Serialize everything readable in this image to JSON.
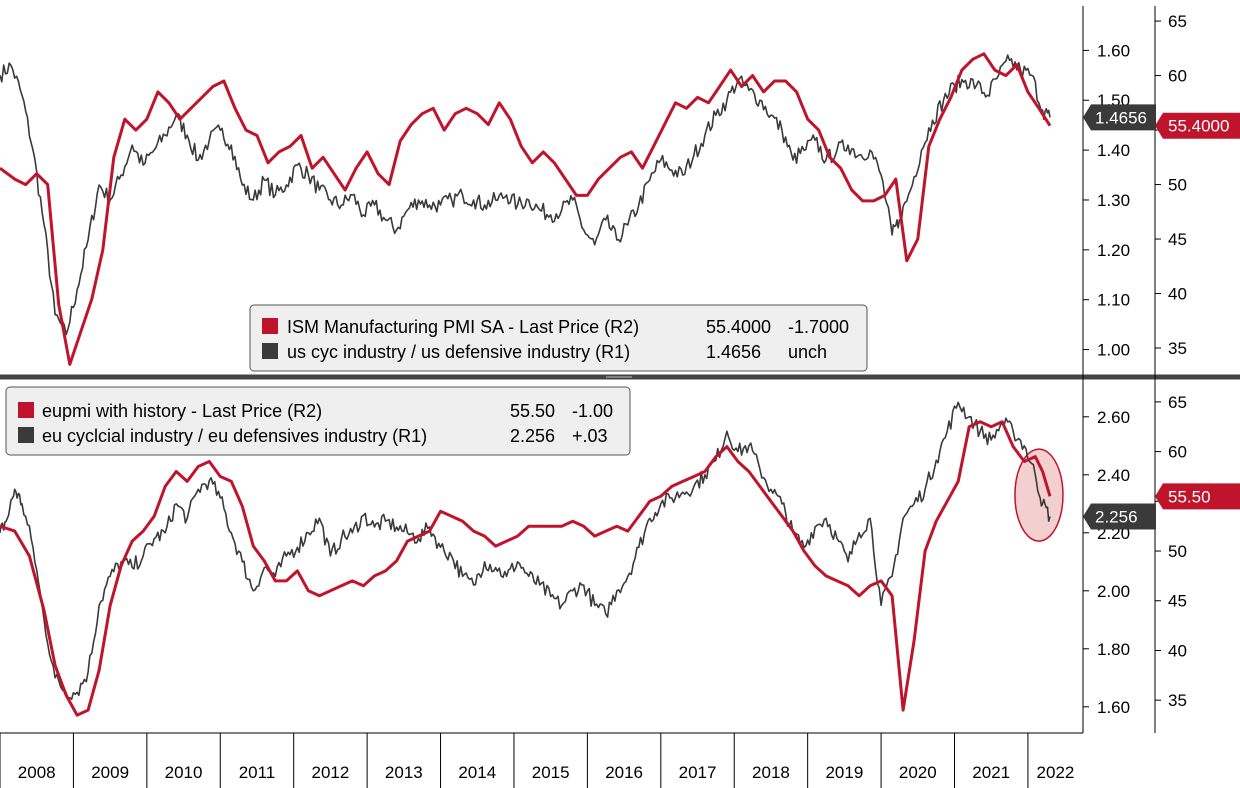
{
  "colors": {
    "red": "#c0142c",
    "black": "#3a3a3a",
    "axis": "#000000",
    "legend_bg": "#efefef",
    "highlight_fill": "#f2c7c7"
  },
  "x_axis": {
    "years": [
      "2008",
      "2009",
      "2010",
      "2011",
      "2012",
      "2013",
      "2014",
      "2015",
      "2016",
      "2017",
      "2018",
      "2019",
      "2020",
      "2021",
      "2022"
    ]
  },
  "chart_data": [
    {
      "type": "line",
      "panel": "top",
      "left_axis_ticks": [
        "1.00",
        "1.10",
        "1.20",
        "1.30",
        "1.40",
        "1.50",
        "1.60"
      ],
      "right_axis_ticks": [
        "35",
        "40",
        "45",
        "50",
        "55",
        "60",
        "65"
      ],
      "ylim_left": [
        0.955,
        1.685
      ],
      "ylim_right": [
        32.8,
        66.2
      ],
      "series": [
        {
          "name": "ISM Manufacturing PMI SA - Last Price (R2)",
          "axis": "right",
          "color": "#c0142c",
          "legend_value": "55.4000",
          "legend_change": "-1.7000",
          "last_label": "55.4000",
          "x": [
            2008.0,
            2008.2,
            2008.35,
            2008.5,
            2008.65,
            2008.8,
            2008.95,
            2009.1,
            2009.25,
            2009.4,
            2009.55,
            2009.7,
            2009.85,
            2010.0,
            2010.15,
            2010.3,
            2010.45,
            2010.6,
            2010.75,
            2010.9,
            2011.05,
            2011.2,
            2011.35,
            2011.5,
            2011.65,
            2011.8,
            2011.95,
            2012.1,
            2012.25,
            2012.4,
            2012.55,
            2012.7,
            2012.85,
            2013.0,
            2013.15,
            2013.3,
            2013.45,
            2013.6,
            2013.75,
            2013.9,
            2014.05,
            2014.2,
            2014.35,
            2014.5,
            2014.65,
            2014.8,
            2014.95,
            2015.1,
            2015.25,
            2015.4,
            2015.55,
            2015.7,
            2015.85,
            2016.0,
            2016.15,
            2016.3,
            2016.45,
            2016.6,
            2016.75,
            2016.9,
            2017.05,
            2017.2,
            2017.35,
            2017.5,
            2017.65,
            2017.8,
            2017.95,
            2018.1,
            2018.25,
            2018.4,
            2018.55,
            2018.7,
            2018.85,
            2019.0,
            2019.15,
            2019.3,
            2019.45,
            2019.6,
            2019.75,
            2019.9,
            2020.05,
            2020.2,
            2020.35,
            2020.5,
            2020.65,
            2020.8,
            2020.95,
            2021.1,
            2021.25,
            2021.4,
            2021.55,
            2021.7,
            2021.85,
            2022.0,
            2022.15,
            2022.3
          ],
          "values": [
            51.5,
            50.5,
            50.0,
            51.0,
            50.0,
            39.0,
            33.5,
            36.5,
            39.5,
            44.0,
            52.5,
            56.0,
            55.0,
            56.0,
            58.5,
            57.5,
            56.0,
            57.0,
            58.0,
            59.0,
            59.5,
            57.0,
            55.0,
            54.5,
            52.0,
            53.0,
            53.5,
            54.5,
            51.5,
            52.5,
            51.0,
            49.5,
            51.5,
            53.0,
            51.0,
            50.0,
            54.0,
            55.5,
            56.5,
            57.0,
            55.0,
            56.5,
            57.0,
            56.5,
            55.5,
            57.5,
            56.0,
            53.5,
            52.0,
            53.0,
            52.0,
            50.5,
            49.0,
            49.0,
            50.5,
            51.5,
            52.5,
            53.0,
            51.5,
            53.5,
            55.5,
            57.5,
            57.0,
            58.0,
            57.5,
            59.0,
            60.5,
            59.0,
            60.0,
            58.5,
            59.5,
            59.5,
            58.5,
            56.0,
            55.0,
            52.5,
            51.5,
            49.5,
            48.5,
            48.5,
            49.0,
            50.5,
            43.0,
            45.0,
            53.5,
            56.0,
            58.0,
            60.5,
            61.5,
            62.0,
            60.5,
            60.0,
            61.0,
            58.5,
            57.0,
            55.4
          ]
        },
        {
          "name": "us cyc industry / us defensive industry (R1)",
          "axis": "left",
          "color": "#3a3a3a",
          "legend_value": "1.4656",
          "legend_change": "unch",
          "last_label": "1.4656",
          "x": [
            2008.0,
            2008.15,
            2008.3,
            2008.45,
            2008.6,
            2008.75,
            2008.9,
            2009.05,
            2009.2,
            2009.35,
            2009.5,
            2009.65,
            2009.8,
            2009.95,
            2010.1,
            2010.25,
            2010.4,
            2010.55,
            2010.7,
            2010.85,
            2011.0,
            2011.15,
            2011.3,
            2011.45,
            2011.6,
            2011.75,
            2011.9,
            2012.05,
            2012.2,
            2012.35,
            2012.5,
            2012.65,
            2012.8,
            2012.95,
            2013.1,
            2013.25,
            2013.4,
            2013.55,
            2013.7,
            2013.85,
            2014.0,
            2014.15,
            2014.3,
            2014.45,
            2014.6,
            2014.75,
            2014.9,
            2015.05,
            2015.2,
            2015.35,
            2015.5,
            2015.65,
            2015.8,
            2015.95,
            2016.1,
            2016.25,
            2016.4,
            2016.55,
            2016.7,
            2016.85,
            2017.0,
            2017.15,
            2017.3,
            2017.45,
            2017.6,
            2017.75,
            2017.9,
            2018.05,
            2018.2,
            2018.35,
            2018.5,
            2018.65,
            2018.8,
            2018.95,
            2019.1,
            2019.25,
            2019.4,
            2019.55,
            2019.7,
            2019.85,
            2020.0,
            2020.15,
            2020.25,
            2020.4,
            2020.55,
            2020.7,
            2020.85,
            2021.0,
            2021.15,
            2021.3,
            2021.45,
            2021.6,
            2021.75,
            2021.9,
            2022.05,
            2022.2,
            2022.3
          ],
          "values": [
            1.55,
            1.57,
            1.51,
            1.4,
            1.25,
            1.07,
            1.03,
            1.12,
            1.22,
            1.33,
            1.3,
            1.35,
            1.41,
            1.37,
            1.4,
            1.43,
            1.47,
            1.43,
            1.38,
            1.42,
            1.44,
            1.41,
            1.33,
            1.3,
            1.34,
            1.31,
            1.33,
            1.37,
            1.35,
            1.32,
            1.3,
            1.29,
            1.31,
            1.27,
            1.29,
            1.26,
            1.24,
            1.28,
            1.3,
            1.29,
            1.29,
            1.3,
            1.31,
            1.3,
            1.29,
            1.3,
            1.31,
            1.29,
            1.3,
            1.28,
            1.27,
            1.28,
            1.3,
            1.24,
            1.21,
            1.26,
            1.22,
            1.25,
            1.29,
            1.34,
            1.38,
            1.36,
            1.35,
            1.39,
            1.43,
            1.47,
            1.5,
            1.54,
            1.52,
            1.5,
            1.47,
            1.44,
            1.38,
            1.4,
            1.42,
            1.38,
            1.4,
            1.41,
            1.39,
            1.4,
            1.35,
            1.23,
            1.26,
            1.32,
            1.4,
            1.46,
            1.5,
            1.53,
            1.54,
            1.53,
            1.51,
            1.55,
            1.58,
            1.56,
            1.55,
            1.48,
            1.4656
          ]
        }
      ]
    },
    {
      "type": "line",
      "panel": "bottom",
      "left_axis_ticks": [
        "1.60",
        "1.80",
        "2.00",
        "2.20",
        "2.40",
        "2.60"
      ],
      "right_axis_ticks": [
        "35",
        "40",
        "45",
        "50",
        "55",
        "60",
        "65"
      ],
      "ylim_left": [
        1.52,
        2.72
      ],
      "ylim_right": [
        32.0,
        67.0
      ],
      "highlight": {
        "x": 2022.15,
        "y": 2.33
      },
      "series": [
        {
          "name": "eupmi with history - Last Price (R2)",
          "axis": "right",
          "color": "#c0142c",
          "legend_value": "55.50",
          "legend_change": "-1.00",
          "last_label": "55.50",
          "x": [
            2008.0,
            2008.2,
            2008.4,
            2008.6,
            2008.75,
            2008.9,
            2009.05,
            2009.2,
            2009.35,
            2009.5,
            2009.65,
            2009.8,
            2009.95,
            2010.1,
            2010.25,
            2010.4,
            2010.55,
            2010.7,
            2010.85,
            2011.0,
            2011.15,
            2011.3,
            2011.45,
            2011.6,
            2011.75,
            2011.9,
            2012.05,
            2012.2,
            2012.35,
            2012.5,
            2012.65,
            2012.8,
            2012.95,
            2013.1,
            2013.25,
            2013.4,
            2013.55,
            2013.7,
            2013.85,
            2014.0,
            2014.15,
            2014.3,
            2014.45,
            2014.6,
            2014.75,
            2014.9,
            2015.05,
            2015.2,
            2015.35,
            2015.5,
            2015.65,
            2015.8,
            2015.95,
            2016.1,
            2016.25,
            2016.4,
            2016.55,
            2016.7,
            2016.85,
            2017.0,
            2017.15,
            2017.3,
            2017.45,
            2017.6,
            2017.75,
            2017.9,
            2018.05,
            2018.2,
            2018.35,
            2018.5,
            2018.65,
            2018.8,
            2018.95,
            2019.1,
            2019.25,
            2019.4,
            2019.55,
            2019.7,
            2019.85,
            2020.0,
            2020.15,
            2020.3,
            2020.45,
            2020.6,
            2020.75,
            2020.9,
            2021.05,
            2021.2,
            2021.35,
            2021.5,
            2021.65,
            2021.8,
            2021.95,
            2022.1,
            2022.2,
            2022.3
          ],
          "values": [
            52.5,
            52.0,
            49.5,
            44.0,
            38.5,
            35.5,
            33.5,
            34.0,
            38.0,
            44.5,
            48.5,
            51.0,
            52.0,
            53.5,
            56.5,
            58.0,
            57.0,
            58.5,
            59.0,
            57.5,
            57.0,
            54.5,
            50.5,
            49.0,
            47.0,
            47.0,
            48.0,
            46.0,
            45.5,
            46.0,
            46.5,
            47.0,
            46.5,
            47.5,
            48.0,
            49.0,
            51.0,
            51.5,
            52.0,
            54.0,
            53.5,
            53.0,
            52.0,
            51.5,
            50.5,
            51.0,
            51.5,
            52.5,
            52.5,
            52.5,
            52.5,
            53.0,
            52.5,
            51.5,
            52.0,
            52.5,
            52.0,
            53.5,
            55.0,
            55.5,
            56.5,
            57.0,
            57.5,
            58.0,
            59.5,
            60.5,
            59.0,
            58.0,
            56.5,
            55.0,
            53.5,
            52.0,
            50.0,
            48.5,
            47.5,
            47.0,
            46.5,
            45.5,
            46.5,
            47.0,
            45.5,
            34.0,
            41.0,
            50.0,
            53.0,
            55.0,
            57.0,
            62.5,
            63.0,
            62.5,
            63.0,
            60.5,
            59.0,
            59.5,
            58.0,
            55.5
          ]
        },
        {
          "name": "eu cyclcial industry / eu defensives industry (R1)",
          "axis": "left",
          "color": "#3a3a3a",
          "legend_value": "2.256",
          "legend_change": "+.03",
          "last_label": "2.256",
          "x": [
            2008.0,
            2008.1,
            2008.2,
            2008.3,
            2008.45,
            2008.6,
            2008.75,
            2008.9,
            2009.05,
            2009.2,
            2009.35,
            2009.5,
            2009.65,
            2009.8,
            2009.95,
            2010.1,
            2010.25,
            2010.4,
            2010.55,
            2010.7,
            2010.85,
            2011.0,
            2011.15,
            2011.3,
            2011.45,
            2011.6,
            2011.75,
            2011.9,
            2012.05,
            2012.2,
            2012.35,
            2012.5,
            2012.65,
            2012.8,
            2012.95,
            2013.1,
            2013.25,
            2013.4,
            2013.55,
            2013.7,
            2013.85,
            2014.0,
            2014.15,
            2014.3,
            2014.45,
            2014.6,
            2014.75,
            2014.9,
            2015.05,
            2015.2,
            2015.35,
            2015.5,
            2015.65,
            2015.8,
            2015.95,
            2016.1,
            2016.25,
            2016.4,
            2016.55,
            2016.7,
            2016.85,
            2017.0,
            2017.15,
            2017.3,
            2017.45,
            2017.6,
            2017.75,
            2017.9,
            2018.05,
            2018.2,
            2018.35,
            2018.5,
            2018.65,
            2018.8,
            2018.95,
            2019.1,
            2019.25,
            2019.4,
            2019.55,
            2019.7,
            2019.85,
            2020.0,
            2020.15,
            2020.3,
            2020.45,
            2020.6,
            2020.75,
            2020.9,
            2021.05,
            2021.2,
            2021.35,
            2021.5,
            2021.65,
            2021.8,
            2021.95,
            2022.1,
            2022.2,
            2022.3
          ],
          "values": [
            2.2,
            2.25,
            2.35,
            2.3,
            2.15,
            1.9,
            1.7,
            1.65,
            1.65,
            1.72,
            1.95,
            2.05,
            2.1,
            2.08,
            2.12,
            2.18,
            2.2,
            2.3,
            2.25,
            2.35,
            2.38,
            2.32,
            2.2,
            2.1,
            2.0,
            2.08,
            2.05,
            2.12,
            2.15,
            2.2,
            2.25,
            2.12,
            2.18,
            2.2,
            2.26,
            2.22,
            2.24,
            2.22,
            2.2,
            2.18,
            2.22,
            2.15,
            2.12,
            2.05,
            2.02,
            2.1,
            2.08,
            2.05,
            2.1,
            2.05,
            2.02,
            1.98,
            1.95,
            2.0,
            2.02,
            1.95,
            1.92,
            2.0,
            2.05,
            2.15,
            2.25,
            2.3,
            2.32,
            2.34,
            2.36,
            2.4,
            2.45,
            2.55,
            2.48,
            2.5,
            2.42,
            2.35,
            2.3,
            2.2,
            2.15,
            2.22,
            2.25,
            2.18,
            2.1,
            2.2,
            2.25,
            1.95,
            2.05,
            2.25,
            2.3,
            2.35,
            2.45,
            2.55,
            2.65,
            2.6,
            2.55,
            2.52,
            2.58,
            2.55,
            2.5,
            2.4,
            2.3,
            2.256
          ]
        }
      ]
    }
  ],
  "legends": {
    "top": [
      {
        "name": "ISM Manufacturing PMI SA - Last Price (R2)",
        "value": "55.4000",
        "change": "-1.7000"
      },
      {
        "name": "us cyc industry / us defensive industry (R1)",
        "value": "1.4656",
        "change": "unch"
      }
    ],
    "bottom": [
      {
        "name": "eupmi with history - Last Price (R2)",
        "value": "55.50",
        "change": "-1.00"
      },
      {
        "name": "eu cyclcial industry / eu defensives industry (R1)",
        "value": "2.256",
        "change": "+.03"
      }
    ]
  }
}
